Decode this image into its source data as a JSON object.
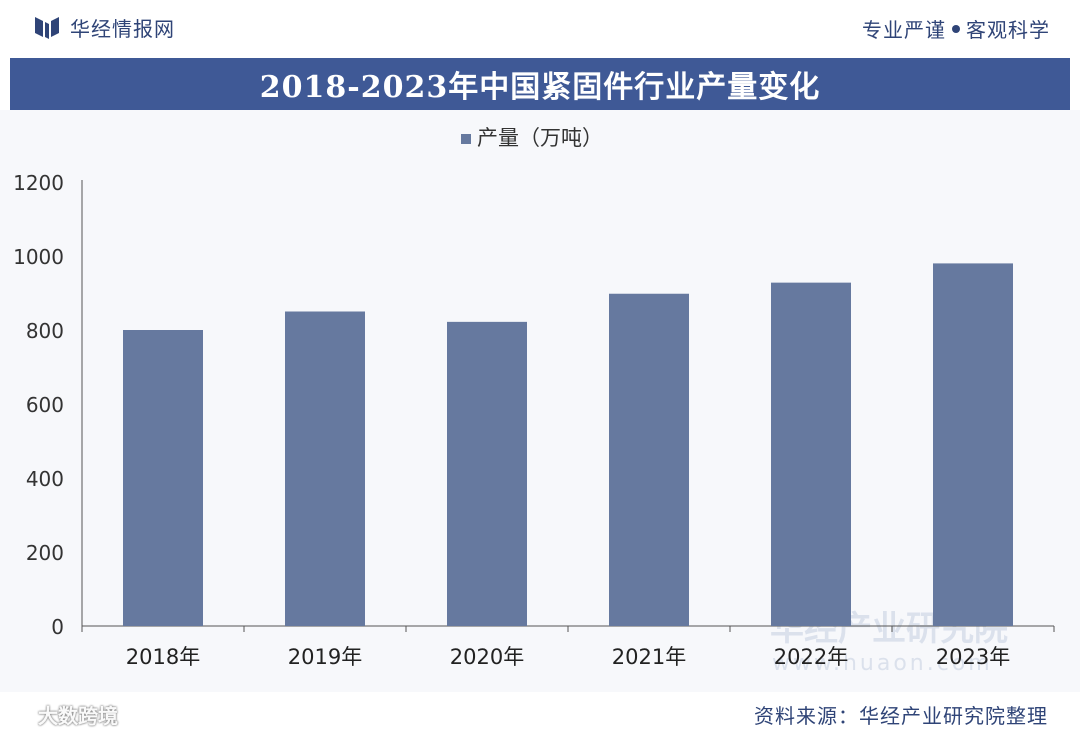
{
  "header": {
    "brand_name": "华经情报网",
    "slogan_left": "专业严谨",
    "slogan_right": "客观科学"
  },
  "title": "2018-2023年中国紧固件行业产量变化",
  "footer": {
    "source": "资料来源：华经产业研究院整理",
    "badge": "大数跨境"
  },
  "watermark": {
    "line1": "华经产业研究院",
    "line2": "www.huaon.com"
  },
  "colors": {
    "bar": "#66799f",
    "title_band": "#3f5996",
    "brand": "#2f4477"
  },
  "chart_data": {
    "type": "bar",
    "categories": [
      "2018年",
      "2019年",
      "2020年",
      "2021年",
      "2022年",
      "2023年"
    ],
    "series": [
      {
        "name": "产量（万吨）",
        "values": [
          800,
          850,
          822,
          898,
          928,
          980
        ]
      }
    ],
    "yticks": [
      0,
      200,
      400,
      600,
      800,
      1000,
      1200
    ],
    "ylim": [
      0,
      1200
    ],
    "legend_position": "top-center",
    "grid": false
  }
}
